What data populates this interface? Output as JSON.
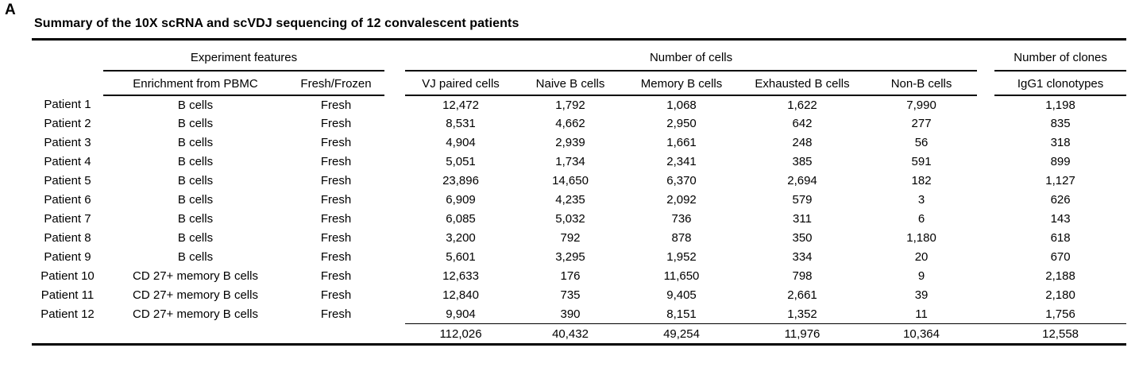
{
  "panel_label": "A",
  "title": "Summary of the 10X scRNA and scVDJ sequencing of 12 convalescent patients",
  "table": {
    "groups": [
      {
        "label": "Experiment features"
      },
      {
        "label": "Number of cells"
      },
      {
        "label": "Number of clones"
      }
    ],
    "columns": [
      "Enrichment from PBMC",
      "Fresh/Frozen",
      "VJ paired cells",
      "Naive B cells",
      "Memory B cells",
      "Exhausted B cells",
      "Non-B cells",
      "IgG1 clonotypes"
    ],
    "rows": [
      {
        "patient": "Patient 1",
        "enrichment": "B cells",
        "fresh_frozen": "Fresh",
        "vj_paired": "12,472",
        "naive": "1,792",
        "memory": "1,068",
        "exhausted": "1,622",
        "non_b": "7,990",
        "igg1": "1,198"
      },
      {
        "patient": "Patient 2",
        "enrichment": "B cells",
        "fresh_frozen": "Fresh",
        "vj_paired": "8,531",
        "naive": "4,662",
        "memory": "2,950",
        "exhausted": "642",
        "non_b": "277",
        "igg1": "835"
      },
      {
        "patient": "Patient 3",
        "enrichment": "B cells",
        "fresh_frozen": "Fresh",
        "vj_paired": "4,904",
        "naive": "2,939",
        "memory": "1,661",
        "exhausted": "248",
        "non_b": "56",
        "igg1": "318"
      },
      {
        "patient": "Patient 4",
        "enrichment": "B cells",
        "fresh_frozen": "Fresh",
        "vj_paired": "5,051",
        "naive": "1,734",
        "memory": "2,341",
        "exhausted": "385",
        "non_b": "591",
        "igg1": "899"
      },
      {
        "patient": "Patient 5",
        "enrichment": "B cells",
        "fresh_frozen": "Fresh",
        "vj_paired": "23,896",
        "naive": "14,650",
        "memory": "6,370",
        "exhausted": "2,694",
        "non_b": "182",
        "igg1": "1,127"
      },
      {
        "patient": "Patient 6",
        "enrichment": "B cells",
        "fresh_frozen": "Fresh",
        "vj_paired": "6,909",
        "naive": "4,235",
        "memory": "2,092",
        "exhausted": "579",
        "non_b": "3",
        "igg1": "626"
      },
      {
        "patient": "Patient 7",
        "enrichment": "B cells",
        "fresh_frozen": "Fresh",
        "vj_paired": "6,085",
        "naive": "5,032",
        "memory": "736",
        "exhausted": "311",
        "non_b": "6",
        "igg1": "143"
      },
      {
        "patient": "Patient 8",
        "enrichment": "B cells",
        "fresh_frozen": "Fresh",
        "vj_paired": "3,200",
        "naive": "792",
        "memory": "878",
        "exhausted": "350",
        "non_b": "1,180",
        "igg1": "618"
      },
      {
        "patient": "Patient 9",
        "enrichment": "B cells",
        "fresh_frozen": "Fresh",
        "vj_paired": "5,601",
        "naive": "3,295",
        "memory": "1,952",
        "exhausted": "334",
        "non_b": "20",
        "igg1": "670"
      },
      {
        "patient": "Patient 10",
        "enrichment": "CD 27+ memory B cells",
        "fresh_frozen": "Fresh",
        "vj_paired": "12,633",
        "naive": "176",
        "memory": "11,650",
        "exhausted": "798",
        "non_b": "9",
        "igg1": "2,188"
      },
      {
        "patient": "Patient 11",
        "enrichment": "CD 27+ memory B cells",
        "fresh_frozen": "Fresh",
        "vj_paired": "12,840",
        "naive": "735",
        "memory": "9,405",
        "exhausted": "2,661",
        "non_b": "39",
        "igg1": "2,180"
      },
      {
        "patient": "Patient 12",
        "enrichment": "CD 27+ memory B cells",
        "fresh_frozen": "Fresh",
        "vj_paired": "9,904",
        "naive": "390",
        "memory": "8,151",
        "exhausted": "1,352",
        "non_b": "11",
        "igg1": "1,756"
      }
    ],
    "totals": {
      "vj_paired": "112,026",
      "naive": "40,432",
      "memory": "49,254",
      "exhausted": "11,976",
      "non_b": "10,364",
      "igg1": "12,558"
    }
  }
}
